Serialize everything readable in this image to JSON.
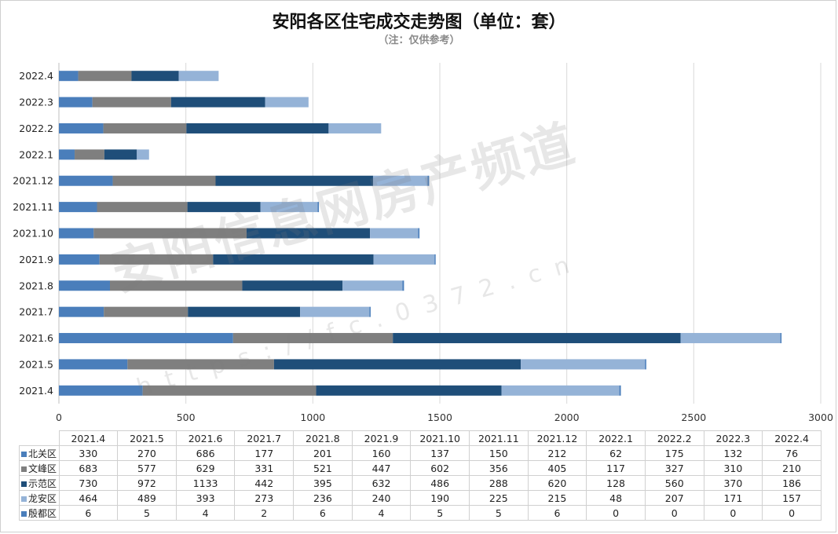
{
  "title": "安阳各区住宅成交走势图（单位：套）",
  "subtitle": "（注：仅供参考）",
  "watermark": {
    "text": "安阳信息网房产频道",
    "url": "https://fc.0372.cn"
  },
  "colors": {
    "北关区": "#4a7ebb",
    "文峰区": "#7f7f7f",
    "示范区": "#1f4e79",
    "龙安区": "#95b3d7",
    "殷都区": "#4a7ebb"
  },
  "chart_data": {
    "type": "bar",
    "orientation": "horizontal",
    "stacked": true,
    "categories": [
      "2021.4",
      "2021.5",
      "2021.6",
      "2021.7",
      "2021.8",
      "2021.9",
      "2021.10",
      "2021.11",
      "2021.12",
      "2022.1",
      "2022.2",
      "2022.3",
      "2022.4"
    ],
    "series": [
      {
        "name": "北关区",
        "values": [
          330,
          270,
          686,
          177,
          201,
          160,
          137,
          150,
          212,
          62,
          175,
          132,
          76
        ]
      },
      {
        "name": "文峰区",
        "values": [
          683,
          577,
          629,
          331,
          521,
          447,
          602,
          356,
          405,
          117,
          327,
          310,
          210
        ]
      },
      {
        "name": "示范区",
        "values": [
          730,
          972,
          1133,
          442,
          395,
          632,
          486,
          288,
          620,
          128,
          560,
          370,
          186
        ]
      },
      {
        "name": "龙安区",
        "values": [
          464,
          489,
          393,
          273,
          236,
          240,
          190,
          225,
          215,
          48,
          207,
          171,
          157
        ]
      },
      {
        "name": "殷都区",
        "values": [
          6,
          5,
          4,
          2,
          6,
          4,
          5,
          5,
          6,
          0,
          0,
          0,
          0
        ]
      }
    ],
    "xlim": [
      0,
      3000
    ],
    "xticks": [
      0,
      500,
      1000,
      1500,
      2000,
      2500,
      3000
    ],
    "grid": true,
    "legend": "data-table",
    "title": "安阳各区住宅成交走势图（单位：套）"
  }
}
